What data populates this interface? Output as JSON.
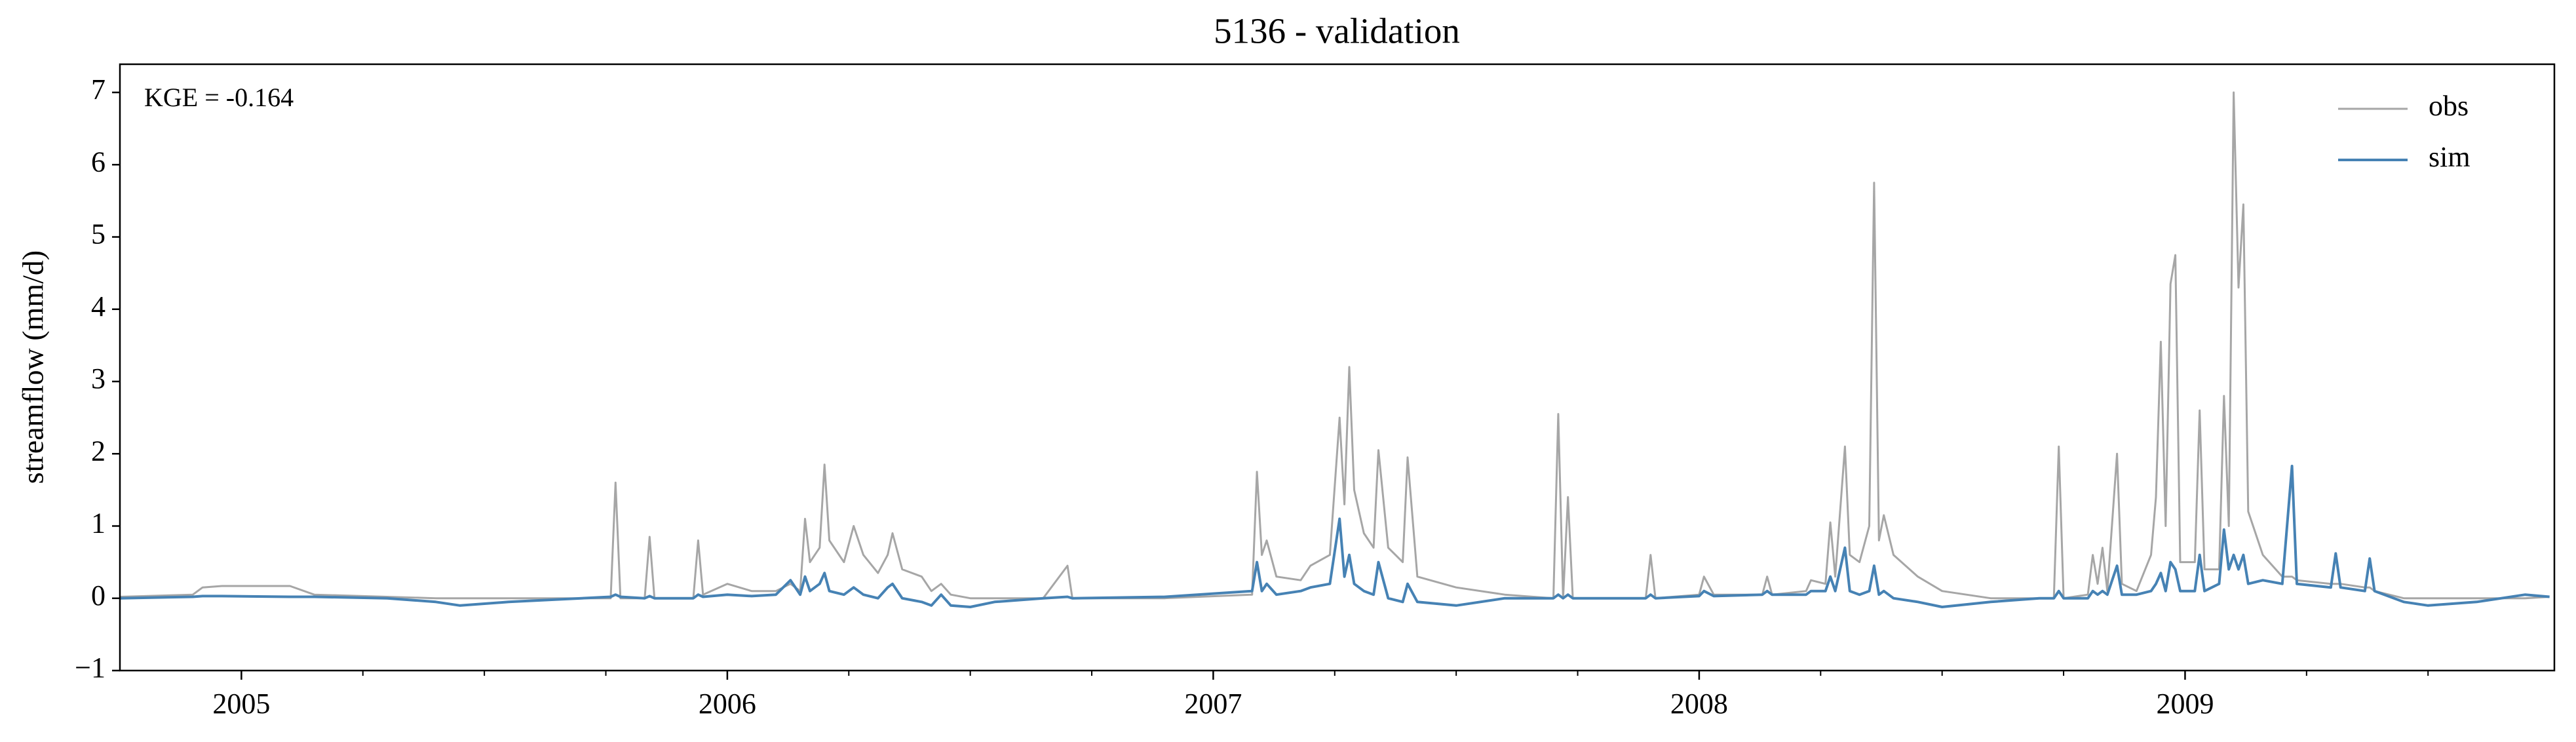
{
  "chart_data": {
    "type": "line",
    "title": "5136 - validation",
    "y_label": "streamflow (mm/d)",
    "annotation": "KGE = -0.164",
    "legend": "upper right",
    "xlim": [
      2004.75,
      2009.76
    ],
    "xticks": [
      2005,
      2006,
      2007,
      2008,
      2009
    ],
    "xminorticks": [
      2005.25,
      2005.5,
      2005.75,
      2006.25,
      2006.5,
      2006.75,
      2007.25,
      2007.5,
      2007.75,
      2008.25,
      2008.5,
      2008.75,
      2009.25,
      2009.5
    ],
    "ylim": [
      -1,
      7.39
    ],
    "yticks": [
      {
        "value": -1,
        "label": "−1"
      },
      0,
      1,
      2,
      3,
      4,
      5,
      6,
      7
    ],
    "x": [
      2004.75,
      2004.9,
      2004.92,
      2004.96,
      2005.1,
      2005.15,
      2005.3,
      2005.4,
      2005.45,
      2005.55,
      2005.7,
      2005.76,
      2005.77,
      2005.78,
      2005.83,
      2005.84,
      2005.85,
      2005.93,
      2005.94,
      2005.95,
      2006.0,
      2006.05,
      2006.1,
      2006.13,
      2006.15,
      2006.16,
      2006.17,
      2006.19,
      2006.2,
      2006.21,
      2006.24,
      2006.26,
      2006.28,
      2006.31,
      2006.33,
      2006.34,
      2006.36,
      2006.4,
      2006.42,
      2006.44,
      2006.46,
      2006.5,
      2006.55,
      2006.65,
      2006.7,
      2006.71,
      2006.9,
      2007.08,
      2007.09,
      2007.1,
      2007.11,
      2007.13,
      2007.18,
      2007.2,
      2007.24,
      2007.26,
      2007.27,
      2007.28,
      2007.29,
      2007.31,
      2007.33,
      2007.34,
      2007.36,
      2007.39,
      2007.4,
      2007.42,
      2007.5,
      2007.6,
      2007.7,
      2007.71,
      2007.72,
      2007.73,
      2007.74,
      2007.89,
      2007.9,
      2007.91,
      2008.0,
      2008.01,
      2008.03,
      2008.13,
      2008.14,
      2008.15,
      2008.22,
      2008.23,
      2008.26,
      2008.27,
      2008.28,
      2008.3,
      2008.31,
      2008.33,
      2008.35,
      2008.36,
      2008.37,
      2008.38,
      2008.4,
      2008.45,
      2008.5,
      2008.6,
      2008.7,
      2008.73,
      2008.74,
      2008.75,
      2008.8,
      2008.81,
      2008.82,
      2008.83,
      2008.84,
      2008.86,
      2008.87,
      2008.9,
      2008.93,
      2008.94,
      2008.95,
      2008.96,
      2008.97,
      2008.98,
      2008.99,
      2009.02,
      2009.03,
      2009.04,
      2009.07,
      2009.08,
      2009.09,
      2009.1,
      2009.11,
      2009.12,
      2009.13,
      2009.16,
      2009.2,
      2009.22,
      2009.23,
      2009.3,
      2009.31,
      2009.32,
      2009.37,
      2009.38,
      2009.39,
      2009.45,
      2009.5,
      2009.6,
      2009.7,
      2009.75
    ],
    "series": [
      {
        "name": "obs",
        "color": "#a6a6a6",
        "values": [
          0.02,
          0.05,
          0.15,
          0.17,
          0.17,
          0.05,
          0.02,
          0,
          0,
          0,
          0,
          0,
          1.6,
          0,
          0,
          0.85,
          0,
          0,
          0.8,
          0.05,
          0.2,
          0.1,
          0.1,
          0.2,
          0.1,
          1.1,
          0.5,
          0.7,
          1.85,
          0.8,
          0.5,
          1.0,
          0.6,
          0.35,
          0.6,
          0.9,
          0.4,
          0.3,
          0.1,
          0.2,
          0.05,
          0,
          0,
          0,
          0.45,
          0,
          0,
          0.05,
          1.75,
          0.6,
          0.8,
          0.3,
          0.25,
          0.45,
          0.6,
          2.5,
          1.3,
          3.2,
          1.5,
          0.9,
          0.7,
          2.05,
          0.7,
          0.5,
          1.95,
          0.3,
          0.15,
          0.05,
          0,
          2.55,
          0,
          1.4,
          0,
          0,
          0.6,
          0,
          0.05,
          0.3,
          0.05,
          0.05,
          0.3,
          0.05,
          0.1,
          0.25,
          0.2,
          1.05,
          0.3,
          2.1,
          0.6,
          0.5,
          1.0,
          5.75,
          0.8,
          1.15,
          0.6,
          0.3,
          0.1,
          0,
          0,
          0,
          2.1,
          0,
          0.05,
          0.6,
          0.2,
          0.7,
          0.1,
          2.0,
          0.2,
          0.1,
          0.6,
          1.4,
          3.55,
          1.0,
          4.35,
          4.75,
          0.5,
          0.5,
          2.6,
          0.4,
          0.4,
          2.8,
          1.0,
          7.0,
          4.3,
          5.45,
          1.2,
          0.6,
          0.3,
          0.3,
          0.25,
          0.2,
          0.2,
          0.2,
          0.15,
          0.15,
          0.1,
          0,
          0,
          0,
          0,
          0.02
        ]
      },
      {
        "name": "sim",
        "color": "#4682b4",
        "values": [
          0,
          0.02,
          0.03,
          0.03,
          0.02,
          0.02,
          0,
          -0.05,
          -0.1,
          -0.05,
          0,
          0.02,
          0.05,
          0.02,
          0,
          0.03,
          0,
          0,
          0.05,
          0.02,
          0.05,
          0.03,
          0.05,
          0.25,
          0.05,
          0.3,
          0.1,
          0.2,
          0.35,
          0.1,
          0.05,
          0.15,
          0.05,
          0,
          0.15,
          0.2,
          0,
          -0.05,
          -0.1,
          0.05,
          -0.1,
          -0.12,
          -0.05,
          0,
          0.02,
          0,
          0.02,
          0.1,
          0.5,
          0.1,
          0.2,
          0.05,
          0.1,
          0.15,
          0.2,
          1.1,
          0.3,
          0.6,
          0.2,
          0.1,
          0.05,
          0.5,
          0,
          -0.05,
          0.2,
          -0.05,
          -0.1,
          0,
          0,
          0.05,
          0,
          0.05,
          0,
          0,
          0.05,
          0,
          0.03,
          0.1,
          0.03,
          0.05,
          0.1,
          0.05,
          0.05,
          0.1,
          0.1,
          0.3,
          0.1,
          0.7,
          0.1,
          0.05,
          0.1,
          0.45,
          0.05,
          0.1,
          0,
          -0.05,
          -0.12,
          -0.05,
          0,
          0,
          0.1,
          0,
          0,
          0.1,
          0.05,
          0.1,
          0.05,
          0.45,
          0.05,
          0.05,
          0.1,
          0.2,
          0.35,
          0.1,
          0.5,
          0.4,
          0.1,
          0.1,
          0.6,
          0.1,
          0.2,
          0.95,
          0.4,
          0.6,
          0.4,
          0.6,
          0.2,
          0.25,
          0.2,
          1.83,
          0.2,
          0.15,
          0.62,
          0.15,
          0.1,
          0.55,
          0.1,
          -0.05,
          -0.1,
          -0.05,
          0.05,
          0.02
        ]
      }
    ]
  }
}
